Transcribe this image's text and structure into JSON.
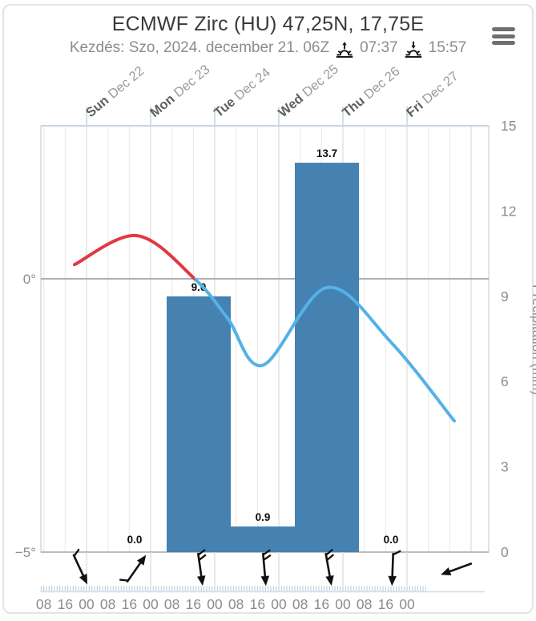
{
  "header": {
    "title": "ECMWF Zirc (HU) 47,25N, 17,75E",
    "run_info": "Kezdés: Szo, 2024. december 21. 06Z",
    "sunrise_time": "07:37",
    "sunset_time": "15:57",
    "icons": [
      "sunrise-icon",
      "sunset-icon",
      "hamburger-menu-icon"
    ]
  },
  "chart_data": {
    "type": "meteogram (temperature line + precipitation bars + wind arrows)",
    "x_domain_hours": [
      6.9,
      174.6
    ],
    "hour_ticks": {
      "start": 8,
      "end": 144,
      "step": 8,
      "labels_cycle": [
        "08",
        "16",
        "00"
      ]
    },
    "day_ticks": [
      {
        "hour": 24,
        "day": "Sun",
        "date": "Dec 22"
      },
      {
        "hour": 48,
        "day": "Mon",
        "date": "Dec 23"
      },
      {
        "hour": 72,
        "day": "Tue",
        "date": "Dec 24"
      },
      {
        "hour": 96,
        "day": "Wed",
        "date": "Dec 25"
      },
      {
        "hour": 120,
        "day": "Thu",
        "date": "Dec 26"
      },
      {
        "hour": 144,
        "day": "Fri",
        "date": "Dec 27"
      }
    ],
    "temperature": {
      "ylim": [
        -5,
        2.8
      ],
      "axis_labels": [
        {
          "value": 0,
          "label": "0°"
        },
        {
          "value": -5,
          "label": "−5°"
        }
      ],
      "zero_crossing_hour": 64.5,
      "points": [
        [
          19.5,
          0.26
        ],
        [
          42.9,
          0.79
        ],
        [
          64.5,
          0.0
        ],
        [
          76.8,
          -0.72
        ],
        [
          90.0,
          -1.58
        ],
        [
          114.0,
          -0.16
        ],
        [
          138.0,
          -1.16
        ],
        [
          161.7,
          -2.6
        ]
      ],
      "color_above_zero": "#e03a3f",
      "color_below_zero": "#54b2e8"
    },
    "precipitation": {
      "axis_title": "Precipitation (mm)",
      "axis_ticks": [
        15,
        12,
        9,
        6,
        3,
        0
      ],
      "ylim": [
        0,
        15
      ],
      "bar_color": "#4581b1",
      "bars": [
        {
          "start_hour": 30,
          "end_hour": 54,
          "value": 0.0,
          "label": "0.0"
        },
        {
          "start_hour": 54,
          "end_hour": 78,
          "value": 9.0,
          "label": "9.0"
        },
        {
          "start_hour": 78,
          "end_hour": 102,
          "value": 0.9,
          "label": "0.9"
        },
        {
          "start_hour": 102,
          "end_hour": 126,
          "value": 13.7,
          "label": "13.7"
        },
        {
          "start_hour": 126,
          "end_hour": 150,
          "value": 0.0,
          "label": "0.0"
        }
      ]
    },
    "wind_arrows": [
      {
        "hour": 21.6,
        "bearing_deg": 155,
        "barbs": 1
      },
      {
        "hour": 42.6,
        "bearing_deg": 35,
        "barbs": 1
      },
      {
        "hour": 66.6,
        "bearing_deg": 172,
        "barbs": 2
      },
      {
        "hour": 90.6,
        "bearing_deg": 175,
        "barbs": 2
      },
      {
        "hour": 114.6,
        "bearing_deg": 170,
        "barbs": 2
      },
      {
        "hour": 138.6,
        "bearing_deg": 182,
        "barbs": 1
      },
      {
        "hour": 162.6,
        "bearing_deg": 250,
        "barbs": 0
      }
    ],
    "grid": {
      "minor_color": "#ececec",
      "day_color": "#dcdcdc",
      "zero_line_color": "#a0a0a0",
      "border_color": "#cfcfcf",
      "top_tick_color": "#c9d6e4",
      "axis_text_color": "#8c8c8c",
      "day_label_color": "#5f5f5f",
      "date_label_color": "#9a9a9a",
      "value_label_color": "#0d0d0d",
      "comb_color": "#b7c9da",
      "comb_base_color": "#cddded"
    }
  }
}
